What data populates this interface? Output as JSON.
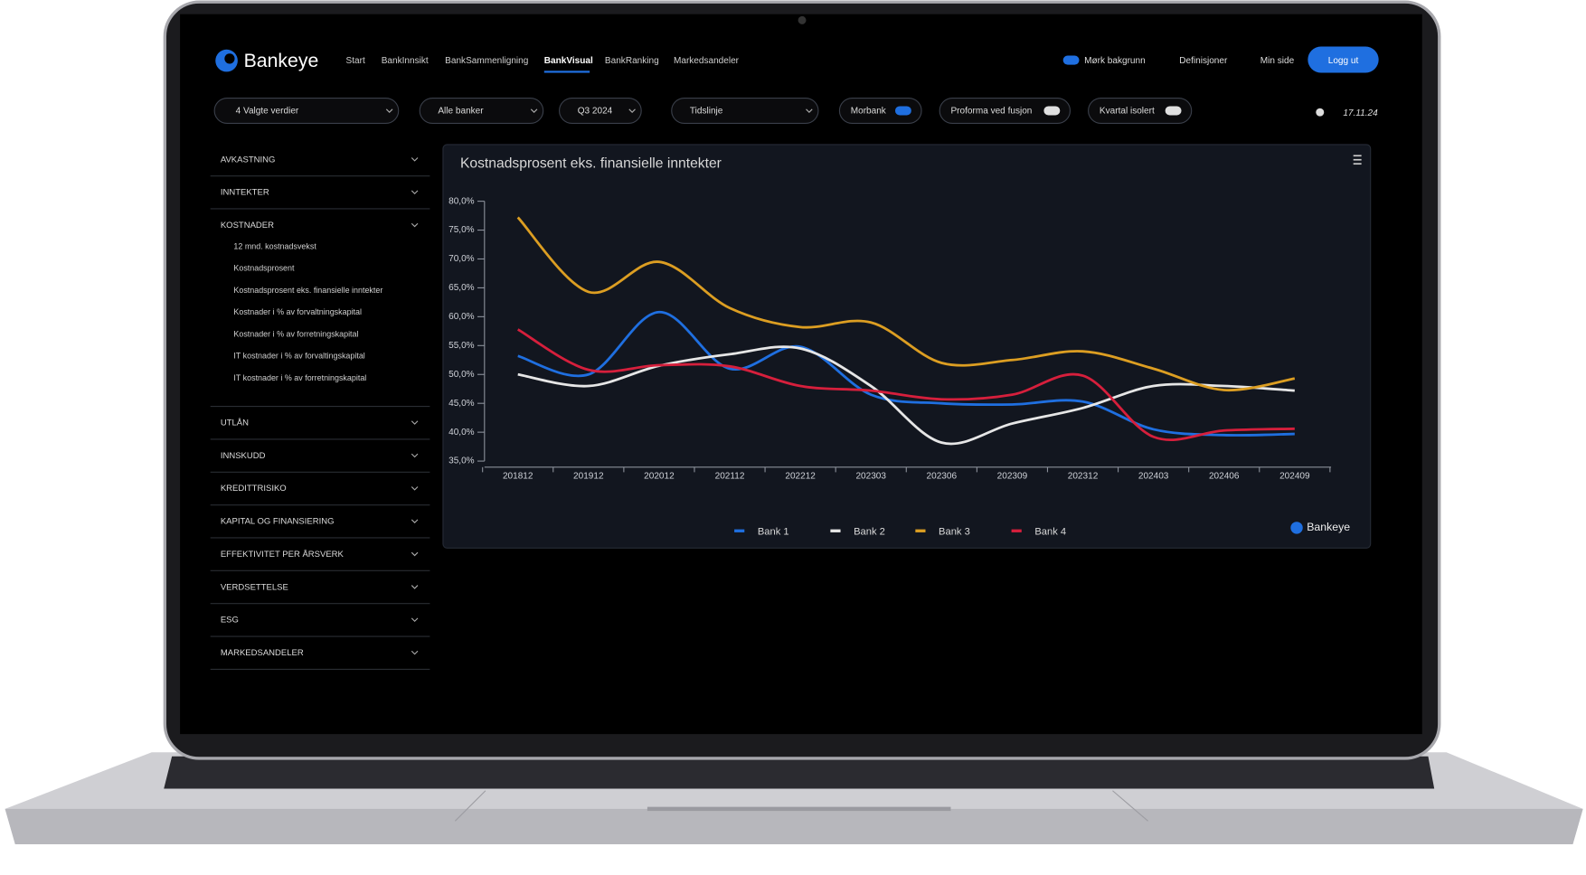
{
  "nav": {
    "logo": "Bankeye",
    "links": [
      "Start",
      "BankInnsikt",
      "BankSammenligning",
      "BankVisual",
      "BankRanking",
      "Markedsandeler"
    ],
    "active_index": 3,
    "right": [
      "Mørk bakgrunn",
      "Definisjoner",
      "Min side"
    ],
    "logout": "Logg ut"
  },
  "filters": {
    "selects": [
      "4 Valgte verdier",
      "Alle banker",
      "Q3 2024",
      "Tidslinje"
    ],
    "toggles": [
      "Morbank",
      "Proforma ved fusjon",
      "Kvartal isolert"
    ],
    "date": "17.11.24"
  },
  "sidebar": {
    "sections": [
      {
        "label": "AVKASTNING"
      },
      {
        "label": "INNTEKTER"
      },
      {
        "label": "KOSTNADER",
        "items": [
          "12 mnd. kostnadsvekst",
          "Kostnadsprosent",
          "Kostnadsprosent eks. finansielle inntekter",
          "Kostnader i % av forvaltningskapital",
          "Kostnader i % av forretningskapital",
          "IT kostnader i % av forvaltingskapital",
          "IT kostnader i % av forretningskapital"
        ]
      },
      {
        "label": "UTLÅN"
      },
      {
        "label": "INNSKUDD"
      },
      {
        "label": "KREDITTRISIKO"
      },
      {
        "label": "KAPITAL OG FINANSIERING"
      },
      {
        "label": "EFFEKTIVITET PER ÅRSVERK"
      },
      {
        "label": "VERDSETTELSE"
      },
      {
        "label": "ESG"
      },
      {
        "label": "MARKEDSANDELER"
      }
    ]
  },
  "chart_data": {
    "type": "line",
    "title": "Kostnadsprosent eks. finansielle inntekter",
    "brand": "Bankeye",
    "categories": [
      "201812",
      "201912",
      "202012",
      "202112",
      "202212",
      "202303",
      "202306",
      "202309",
      "202312",
      "202403",
      "202406",
      "202409"
    ],
    "series": [
      {
        "name": "Bank 1",
        "color": "#1f6fe0",
        "values": [
          53.2,
          50,
          60.8,
          51,
          54.8,
          46.5,
          45,
          44.8,
          45.3,
          40.5,
          39.5,
          39.7
        ]
      },
      {
        "name": "Bank 2",
        "color": "#e6e6e6",
        "values": [
          50,
          48,
          51.5,
          53.5,
          54.5,
          48,
          38.2,
          41.5,
          44.2,
          48,
          48,
          47.2
        ]
      },
      {
        "name": "Bank 3",
        "color": "#dc9e22",
        "values": [
          77.2,
          64.3,
          69.5,
          61.5,
          58.2,
          59,
          52,
          52.5,
          54,
          51,
          47.3,
          49.3
        ]
      },
      {
        "name": "Bank 4",
        "color": "#d61f3c",
        "values": [
          57.8,
          50.8,
          51.6,
          51.4,
          48,
          47.2,
          45.7,
          46.5,
          49.8,
          39.2,
          40.3,
          40.6
        ]
      }
    ],
    "ylim": [
      35,
      80
    ],
    "yticks": [
      {
        "value": 35,
        "label": "35,0%"
      },
      {
        "value": 40,
        "label": "40,0%"
      },
      {
        "value": 45,
        "label": "45,0%"
      },
      {
        "value": 50,
        "label": "50,0%"
      },
      {
        "value": 55,
        "label": "55,0%"
      },
      {
        "value": 60,
        "label": "60,0%"
      },
      {
        "value": 65,
        "label": "65,0%"
      },
      {
        "value": 70,
        "label": "70,0%"
      },
      {
        "value": 75,
        "label": "75,0%"
      },
      {
        "value": 80,
        "label": "80,0%"
      }
    ],
    "grid": false,
    "legend": "bottom"
  }
}
